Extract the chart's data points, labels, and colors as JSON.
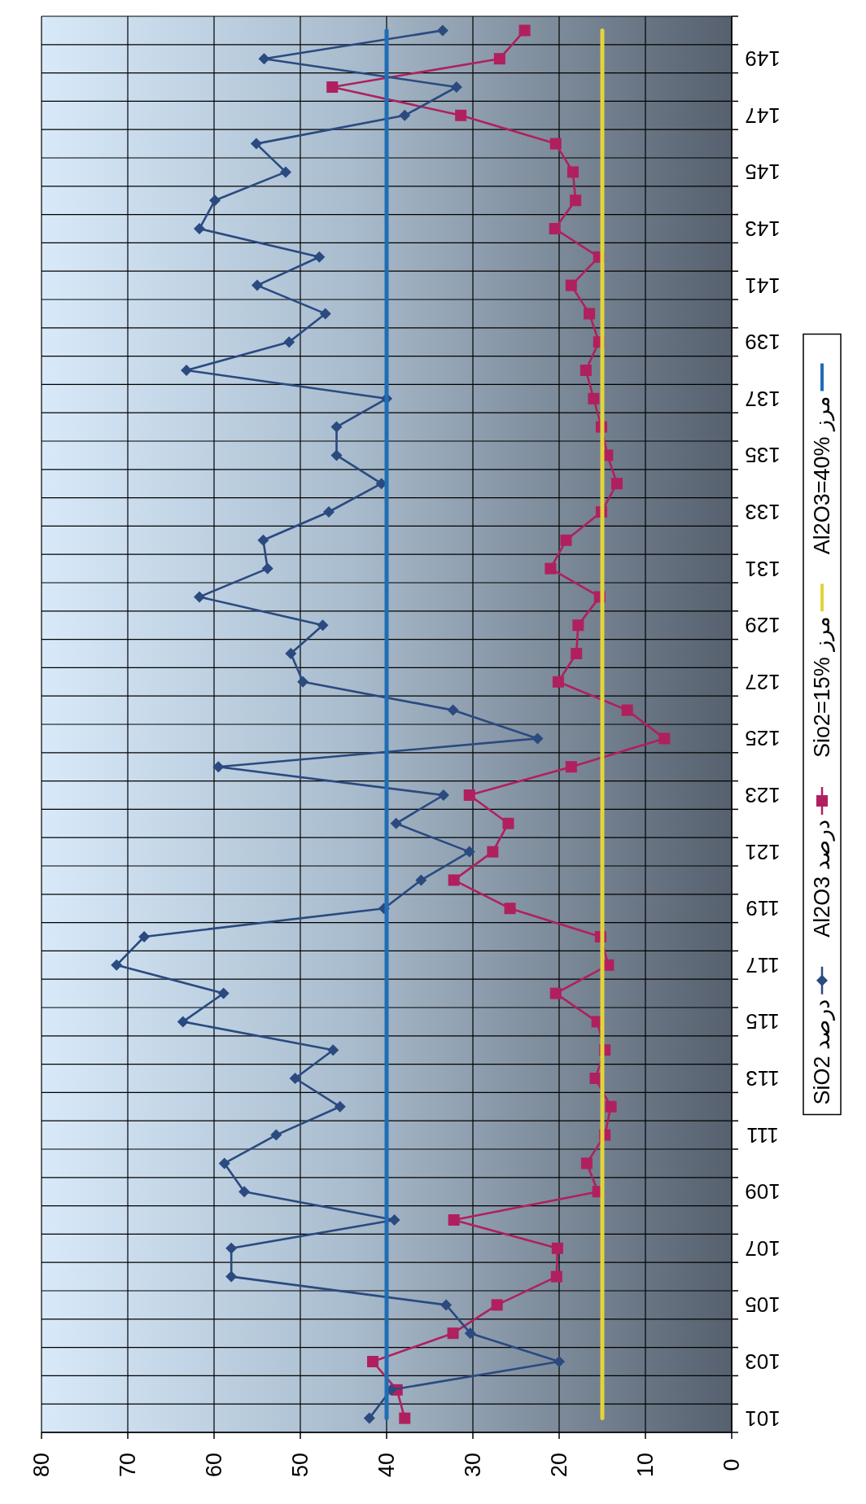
{
  "chart_data": {
    "type": "line",
    "orientation": "horizontal",
    "categories": [
      null,
      "149",
      null,
      "147",
      null,
      "145",
      null,
      "143",
      null,
      "141",
      null,
      "139",
      null,
      "137",
      null,
      "135",
      null,
      "133",
      null,
      "131",
      null,
      "129",
      null,
      "127",
      null,
      "125",
      null,
      "123",
      null,
      "121",
      null,
      "119",
      null,
      "117",
      null,
      "115",
      null,
      "113",
      null,
      "111",
      null,
      "109",
      null,
      "107",
      null,
      "105",
      null,
      "103",
      null,
      "101"
    ],
    "series": [
      {
        "name": "SiO2 درصد",
        "color": "#2a4a80",
        "marker": "diamond",
        "values": [
          33.5,
          54.2,
          31.9,
          37.9,
          55.1,
          51.7,
          59.9,
          61.7,
          47.8,
          55,
          47.1,
          51.3,
          63.2,
          40,
          45.8,
          45.8,
          40.6,
          46.7,
          54.3,
          53.8,
          61.7,
          47.4,
          51.1,
          49.7,
          32.3,
          22.5,
          59.5,
          33.4,
          38.9,
          30.4,
          36,
          40.3,
          68.1,
          71.3,
          58.9,
          63.6,
          46.2,
          50.6,
          45.4,
          52.8,
          58.8,
          56.5,
          39.1,
          58,
          58,
          33.1,
          30.3,
          20,
          39.5,
          42
        ]
      },
      {
        "name": "Al2O3 درصد",
        "color": "#b0205e",
        "marker": "square",
        "values": [
          24,
          26.9,
          46.3,
          31.4,
          20.4,
          18.4,
          18.1,
          20.5,
          15.4,
          18.6,
          16.5,
          15.4,
          16.9,
          16,
          15.1,
          14.4,
          13.3,
          15.1,
          19.2,
          21,
          15.3,
          17.8,
          18,
          20.1,
          12.1,
          7.8,
          18.6,
          30.4,
          25.9,
          27.7,
          32.2,
          25.7,
          15.2,
          14.3,
          20.4,
          15.6,
          14.7,
          15.8,
          14,
          14.7,
          16.8,
          15.5,
          32.2,
          20.2,
          20.3,
          27.2,
          32.3,
          41.6,
          38.8,
          37.9
        ]
      },
      {
        "name": "Sio2=15% مرز",
        "color": "#e2d43c",
        "marker": "none",
        "values": [
          15,
          15,
          15,
          15,
          15,
          15,
          15,
          15,
          15,
          15,
          15,
          15,
          15,
          15,
          15,
          15,
          15,
          15,
          15,
          15,
          15,
          15,
          15,
          15,
          15,
          15,
          15,
          15,
          15,
          15,
          15,
          15,
          15,
          15,
          15,
          15,
          15,
          15,
          15,
          15,
          15,
          15,
          15,
          15,
          15,
          15,
          15,
          15,
          15,
          15
        ]
      },
      {
        "name": "Al2O3=40% مرز",
        "color": "#1f6db5",
        "marker": "none",
        "values": [
          40,
          40,
          40,
          40,
          40,
          40,
          40,
          40,
          40,
          40,
          40,
          40,
          40,
          40,
          40,
          40,
          40,
          40,
          40,
          40,
          40,
          40,
          40,
          40,
          40,
          40,
          40,
          40,
          40,
          40,
          40,
          40,
          40,
          40,
          40,
          40,
          40,
          40,
          40,
          40,
          40,
          40,
          40,
          40,
          40,
          40,
          40,
          40,
          40,
          40
        ]
      }
    ],
    "xlim": [
      80,
      0
    ],
    "xticks": [
      80,
      70,
      60,
      50,
      40,
      30,
      20,
      10,
      0
    ],
    "grid": true,
    "legend": "right"
  }
}
